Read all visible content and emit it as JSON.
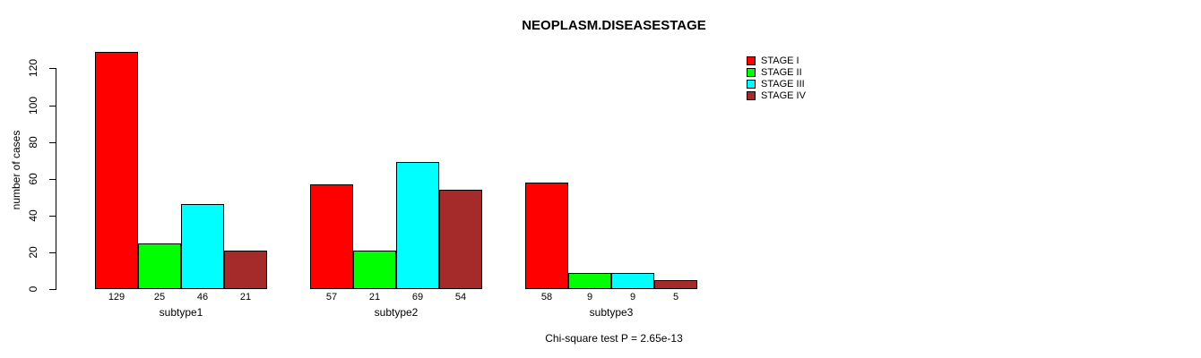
{
  "chart_data": {
    "type": "bar",
    "title": "NEOPLASM.DISEASESTAGE",
    "ylabel": "number of cases",
    "xlabel": "",
    "categories": [
      "subtype1",
      "subtype2",
      "subtype3"
    ],
    "series": [
      {
        "name": "STAGE I",
        "color": "#FF0000",
        "values": [
          129,
          57,
          58
        ]
      },
      {
        "name": "STAGE II",
        "color": "#00FF00",
        "values": [
          25,
          21,
          9
        ]
      },
      {
        "name": "STAGE III",
        "color": "#00FFFF",
        "values": [
          46,
          69,
          9
        ]
      },
      {
        "name": "STAGE IV",
        "color": "#A52A2A",
        "values": [
          21,
          54,
          5
        ]
      }
    ],
    "yticks": [
      0,
      20,
      40,
      60,
      80,
      100,
      120
    ],
    "ylim": [
      0,
      130
    ],
    "grid": false,
    "legend_position": "top-right",
    "value_labels_shown": true
  },
  "footer": {
    "text": "Chi-square test P = 2.65e-13"
  }
}
